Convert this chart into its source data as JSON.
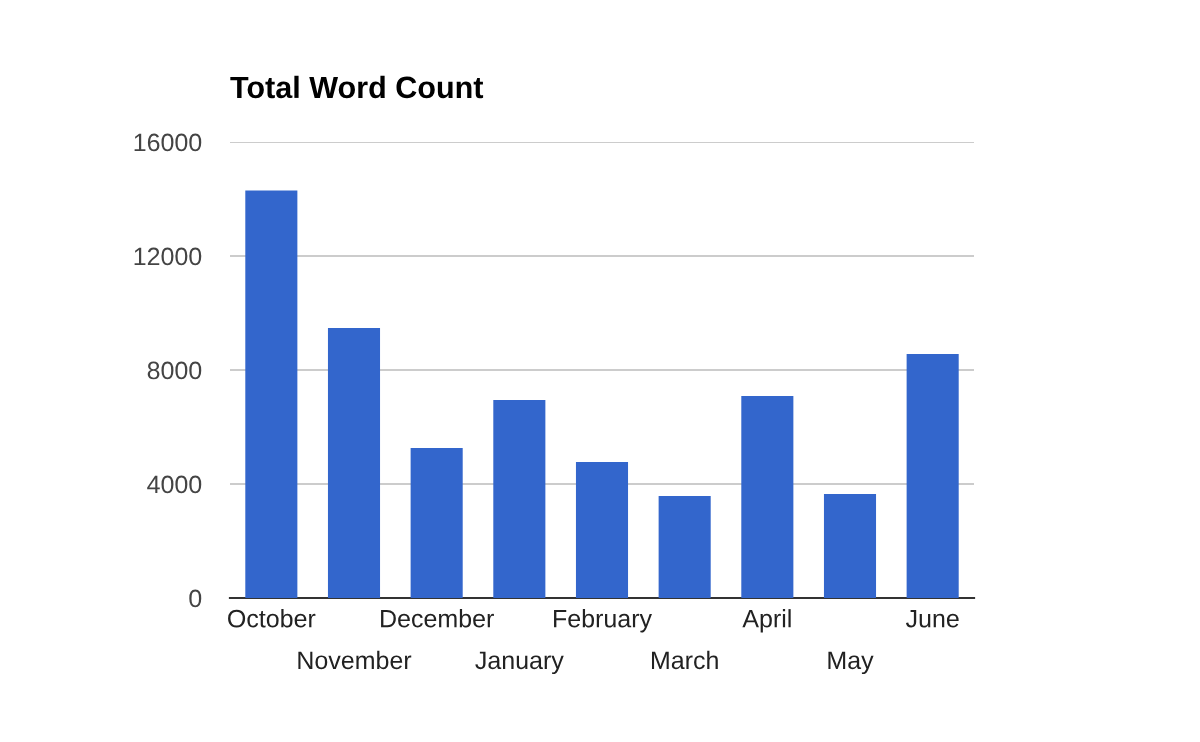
{
  "chart_data": {
    "type": "bar",
    "title": "Total Word Count",
    "categories": [
      "October",
      "November",
      "December",
      "January",
      "February",
      "March",
      "April",
      "May",
      "June"
    ],
    "values": [
      14300,
      9470,
      5260,
      6950,
      4770,
      3580,
      7090,
      3650,
      8560
    ],
    "color": "#3366cc",
    "ylim": [
      0,
      16000
    ],
    "yticks": [
      0,
      4000,
      8000,
      12000,
      16000
    ],
    "grid": "y",
    "legend": false
  }
}
